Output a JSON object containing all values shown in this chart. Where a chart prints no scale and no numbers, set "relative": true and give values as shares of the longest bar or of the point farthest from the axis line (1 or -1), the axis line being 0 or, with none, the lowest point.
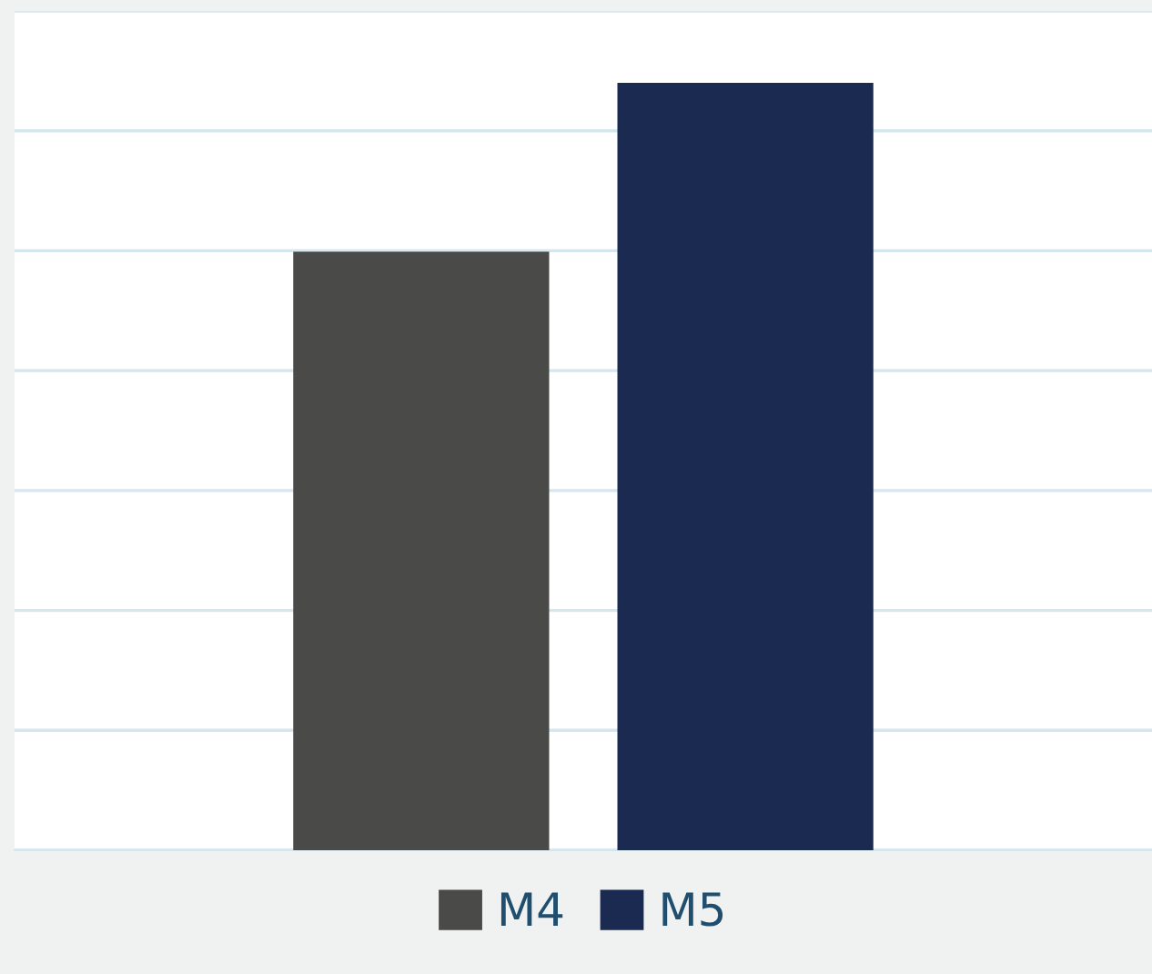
{
  "chart_data": {
    "type": "bar",
    "relative": true,
    "categories": [
      null
    ],
    "series": [
      {
        "name": "M4",
        "color": "#4a4a48",
        "values": [
          0.78
        ]
      },
      {
        "name": "M5",
        "color": "#1b2a50",
        "values": [
          1
        ]
      }
    ],
    "grid": "y",
    "legend": "bottom"
  }
}
